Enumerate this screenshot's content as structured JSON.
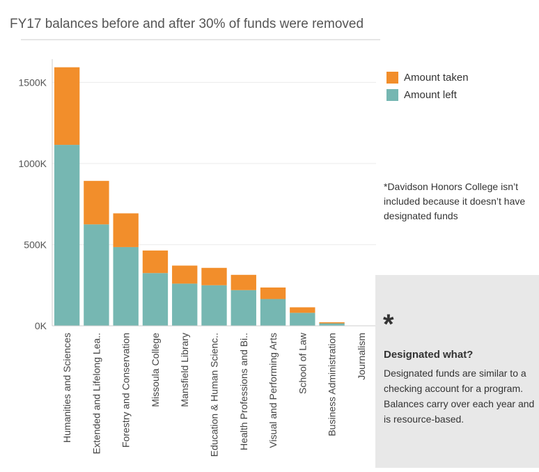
{
  "title": "FY17 balances before and after 30% of funds were removed",
  "colors": {
    "taken": "#f28e2b",
    "left": "#76b7b2",
    "grid": "#ececec",
    "axis": "#cccccc"
  },
  "legend": [
    {
      "label": "Amount taken",
      "color": "#f28e2b"
    },
    {
      "label": "Amount left",
      "color": "#76b7b2"
    }
  ],
  "note": [
    "*Davidson Honors College isn’t",
    "included because it doesn’t have",
    "designated funds"
  ],
  "panel": {
    "star": "*",
    "heading": "Designated what?",
    "body": [
      "Designated funds are similar to a",
      "checking account for a program.",
      "Balances carry over each year and",
      "is resource-based."
    ]
  },
  "chart_data": {
    "type": "bar",
    "stacked": true,
    "categories": [
      "Humanities and Sciences",
      "Extended and Lifelong Lea..",
      "Forestry and Conservation",
      "Missoula College",
      "Mansfield Library",
      "Education & Human Scienc..",
      "Health Professions and Bi..",
      "Visual and Performing Arts",
      "School of Law",
      "Business Administration",
      "Journalism"
    ],
    "series": [
      {
        "name": "Amount left",
        "color": "#76b7b2",
        "values": [
          1115,
          625,
          485,
          325,
          260,
          250,
          220,
          165,
          80,
          15,
          0
        ]
      },
      {
        "name": "Amount taken",
        "color": "#f28e2b",
        "values": [
          478,
          268,
          208,
          139,
          111,
          107,
          94,
          71,
          34,
          7,
          0
        ]
      }
    ],
    "ylim": [
      0,
      1600
    ],
    "yticks": [
      0,
      500,
      1000,
      1500
    ],
    "ytick_labels": [
      "0K",
      "500K",
      "1000K",
      "1500K"
    ],
    "grid": true,
    "legend_position": "right"
  }
}
